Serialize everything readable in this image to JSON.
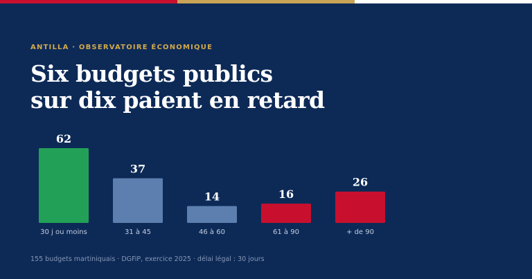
{
  "colors": {
    "background": "#0d2a57",
    "accent_gold": "#d2a94b",
    "top_bar": [
      "#c8102e",
      "#c9a456",
      "#ffffff"
    ],
    "bar_good": "#23a057",
    "bar_neutral": "#5d7fb0",
    "bar_late": "#c8102e"
  },
  "header": {
    "kicker": "ANTILLA · OBSERVATOIRE ÉCONOMIQUE",
    "title_line1": "Six budgets publics",
    "title_line2": "sur dix paient en retard"
  },
  "chart_data": {
    "type": "bar",
    "categories": [
      "30 j ou moins",
      "31 à 45",
      "46 à 60",
      "61 à 90",
      "+ de 90"
    ],
    "values": [
      62,
      37,
      14,
      16,
      26
    ],
    "bar_colors": [
      "#23a057",
      "#5d7fb0",
      "#5d7fb0",
      "#c8102e",
      "#c8102e"
    ],
    "title": "",
    "xlabel": "",
    "ylabel": "",
    "ylim": [
      0,
      62
    ],
    "grid": false,
    "data_labels": true
  },
  "footer": {
    "source": "155 budgets martiniquais · DGFiP, exercice 2025 · délai légal : 30 jours"
  }
}
